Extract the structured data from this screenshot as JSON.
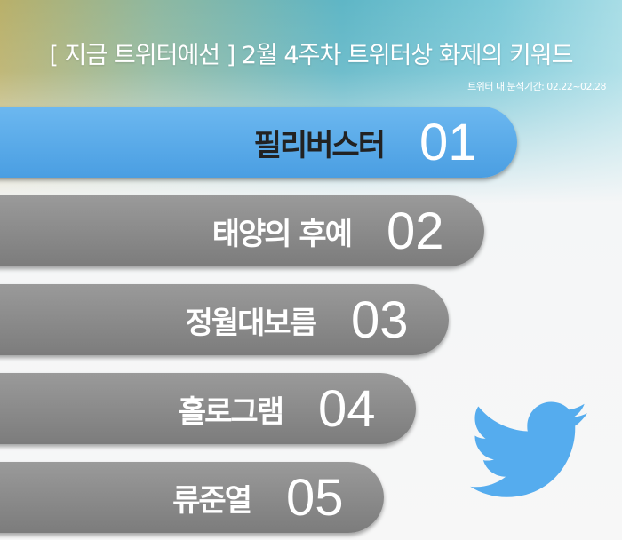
{
  "title": "[ 지금 트위터에선 ] 2월 4주차 트위터상 화제의 키워드",
  "period": "트위터 내 분석기간: 02.22~02.28",
  "keywords": [
    {
      "rank": "01",
      "label": "필리버스터",
      "highlighted": true
    },
    {
      "rank": "02",
      "label": "태양의 후예",
      "highlighted": false
    },
    {
      "rank": "03",
      "label": "정월대보름",
      "highlighted": false
    },
    {
      "rank": "04",
      "label": "홀로그램",
      "highlighted": false
    },
    {
      "rank": "05",
      "label": "류준열",
      "highlighted": false
    }
  ],
  "colors": {
    "highlight": "#5aaae8",
    "bar": "#8a8a8a",
    "bird": "#55acee"
  },
  "logo_icon": "twitter-bird-icon"
}
